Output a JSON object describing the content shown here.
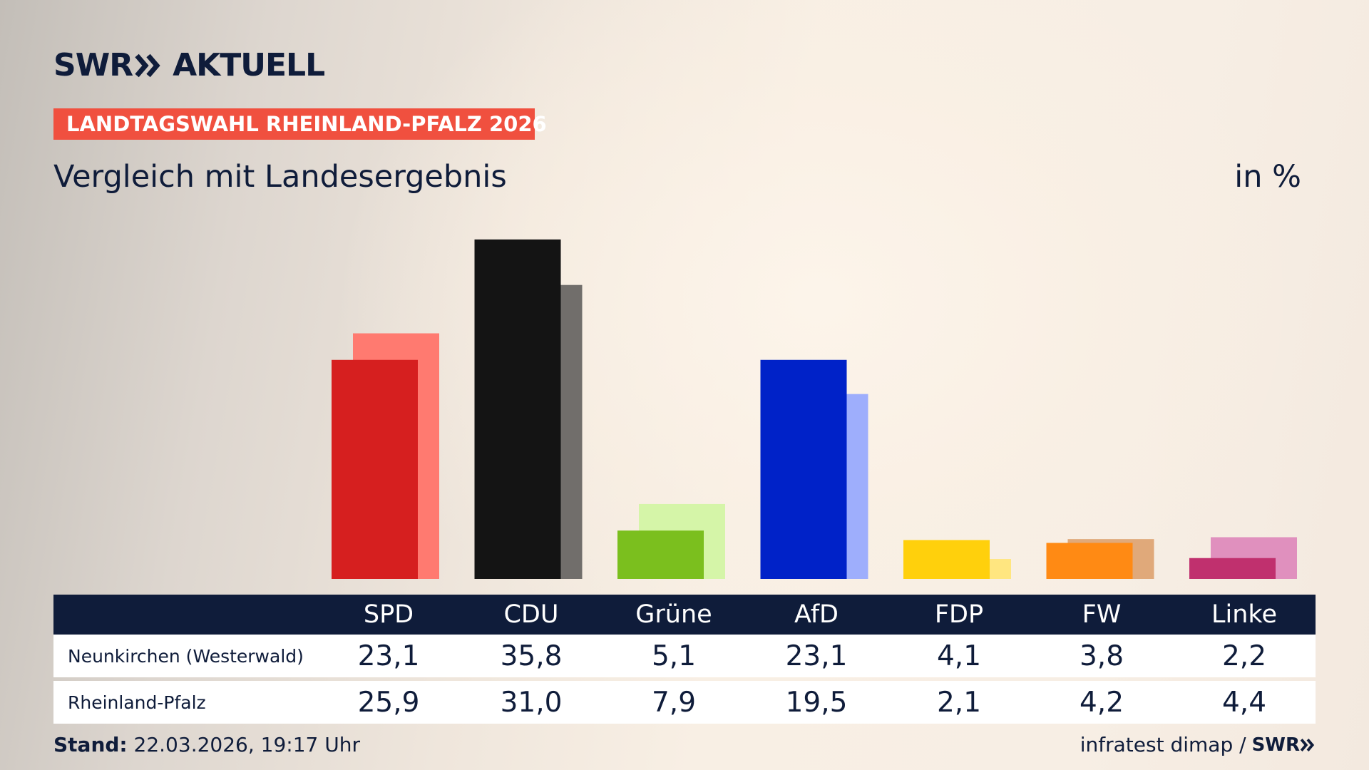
{
  "header": {
    "logo_text": "SWR",
    "logo_text2": "AKTUELL",
    "tag": "LANDTAGSWAHL RHEINLAND-PFALZ 2026",
    "subtitle": "Vergleich mit Landesergebnis",
    "unit": "in %"
  },
  "colors": {
    "SPD": [
      "#d61f1f",
      "#ff7a70"
    ],
    "CDU": [
      "#141414",
      "#716e6b"
    ],
    "Grüne": [
      "#7bbf1e",
      "#d5f5a8"
    ],
    "AfD": [
      "#0022c8",
      "#9eaefc"
    ],
    "FDP": [
      "#ffd00c",
      "#ffe680"
    ],
    "FW": [
      "#ff8a14",
      "#e0a97a"
    ],
    "Linke": [
      "#c0306e",
      "#e090be"
    ]
  },
  "chart_data": {
    "type": "bar",
    "categories": [
      "SPD",
      "CDU",
      "Grüne",
      "AfD",
      "FDP",
      "FW",
      "Linke"
    ],
    "series": [
      {
        "name": "Neunkirchen (Westerwald)",
        "values": [
          23.1,
          35.8,
          5.1,
          23.1,
          4.1,
          3.8,
          2.2
        ]
      },
      {
        "name": "Rheinland-Pfalz",
        "values": [
          25.9,
          31.0,
          7.9,
          19.5,
          2.1,
          4.2,
          4.4
        ]
      }
    ]
  },
  "table": {
    "rows": [
      {
        "label": "Neunkirchen (Westerwald)",
        "values": [
          "23,1",
          "35,8",
          "5,1",
          "23,1",
          "4,1",
          "3,8",
          "2,2"
        ]
      },
      {
        "label": "Rheinland-Pfalz",
        "values": [
          "25,9",
          "31,0",
          "7,9",
          "19,5",
          "2,1",
          "4,2",
          "4,4"
        ]
      }
    ]
  },
  "footer": {
    "stand_label": "Stand:",
    "stand_value": "22.03.2026, 19:17 Uhr",
    "source": "infratest dimap /",
    "source_logo": "SWR"
  }
}
